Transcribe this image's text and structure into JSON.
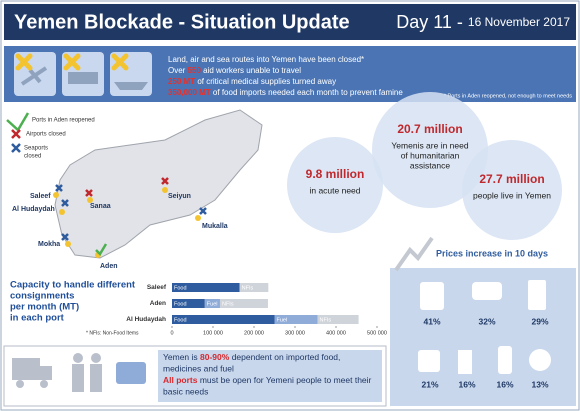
{
  "header": {
    "title": "Yemen Blockade - Situation Update",
    "day": "Day 11 - ",
    "date": "16 November 2017"
  },
  "banner": {
    "lines": [
      [
        {
          "text": "Land, air and sea routes into Yemen have been closed*"
        }
      ],
      [
        {
          "text": "Over "
        },
        {
          "text": "550",
          "highlight": true
        },
        {
          "text": " aid workers unable to travel"
        }
      ],
      [
        {
          "text": "250 MT",
          "highlight": true
        },
        {
          "text": " of critical medical supplies turned away"
        }
      ],
      [
        {
          "text": "350,000 MT",
          "highlight": true
        },
        {
          "text": " of food imports needed each month to prevent famine"
        }
      ]
    ],
    "footnote": "* Ports in Aden reopened, not enough to meet needs"
  },
  "map": {
    "legend": [
      "Ports in Aden reopened",
      "Airports closed",
      "Seaports",
      "closed"
    ],
    "cities": [
      "Saleef",
      "Al Hudaydah",
      "Sanaa",
      "Seiyun",
      "Mukalla",
      "Mokha",
      "Aden"
    ]
  },
  "figures": [
    {
      "number": "9.8 million",
      "lines": [
        "in acute need"
      ]
    },
    {
      "number": "20.7 million",
      "lines": [
        "Yemenis are in need",
        "of humanitarian",
        "assistance"
      ]
    },
    {
      "number": "27.7 million",
      "lines": [
        "people live in Yemen"
      ]
    }
  ],
  "chart_data": {
    "type": "stacked-bar-horizontal",
    "title": [
      "Capacity to handle different",
      "consignments",
      "per month (MT)",
      "in each port"
    ],
    "categories": [
      "Saleef",
      "Aden",
      "Al Hudaydah"
    ],
    "series": [
      {
        "name": "Food",
        "color": "#2f5c9e",
        "values": [
          165000,
          80000,
          250000
        ]
      },
      {
        "name": "Fuel",
        "color": "#8fabd8",
        "values": [
          null,
          37000,
          105000
        ]
      },
      {
        "name": "NFIs",
        "color": "#cfd3da",
        "values": [
          70000,
          117000,
          100000
        ]
      }
    ],
    "xlim": [
      0,
      500000
    ],
    "xticks": [
      0,
      {
        "value": 100000,
        "label": "100 000"
      },
      {
        "value": 200000,
        "label": "200 000"
      },
      {
        "value": 300000,
        "label": "300 000"
      },
      {
        "value": 400000,
        "label": "400 000"
      },
      {
        "value": 500000,
        "label": "500 000"
      }
    ],
    "note": "* NFIs: Non-Food Items"
  },
  "prices": {
    "title": "Prices increase in 10 days",
    "items": [
      "41%",
      "32%",
      "29%",
      "21%",
      "16%",
      "16%",
      "13%"
    ]
  },
  "message": {
    "lines": [
      [
        {
          "text": "Yemen is "
        },
        {
          "text": "80-90%",
          "highlight": true
        },
        {
          "text": " dependent on imported food,"
        }
      ],
      [
        {
          "text": "medicines and fuel"
        }
      ],
      [
        {
          "text": "All ports",
          "highlight": true
        },
        {
          "text": " must be open for Yemeni people to meet their"
        }
      ],
      [
        {
          "text": "basic needs"
        }
      ]
    ]
  }
}
